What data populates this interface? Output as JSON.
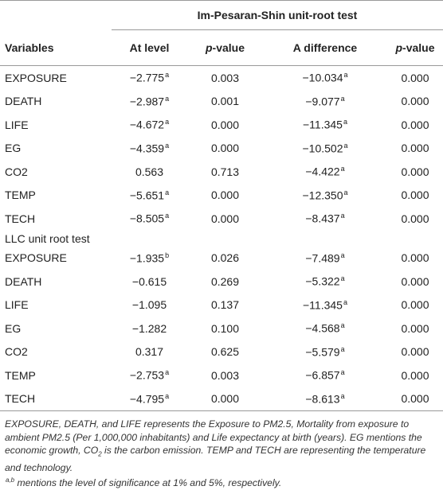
{
  "table": {
    "title": "Im-Pesaran-Shin unit-root test",
    "columns": [
      "Variables",
      "At level",
      {
        "italic": "p",
        "text": "-value"
      },
      "A difference",
      {
        "italic": "p",
        "text": "-value"
      }
    ],
    "panels": [
      {
        "rows": [
          [
            "EXPOSURE",
            {
              "text": "−2.775",
              "sup": "a"
            },
            "0.003",
            {
              "text": "−10.034",
              "sup": "a"
            },
            "0.000"
          ],
          [
            "DEATH",
            {
              "text": "−2.987",
              "sup": "a"
            },
            "0.001",
            {
              "text": "−9.077",
              "sup": "a"
            },
            "0.000"
          ],
          [
            "LIFE",
            {
              "text": "−4.672",
              "sup": "a"
            },
            "0.000",
            {
              "text": "−11.345",
              "sup": "a"
            },
            "0.000"
          ],
          [
            "EG",
            {
              "text": "−4.359",
              "sup": "a"
            },
            "0.000",
            {
              "text": "−10.502",
              "sup": "a"
            },
            "0.000"
          ],
          [
            "CO2",
            "0.563",
            "0.713",
            {
              "text": "−4.422",
              "sup": "a"
            },
            "0.000"
          ],
          [
            "TEMP",
            {
              "text": "−5.651",
              "sup": "a"
            },
            "0.000",
            {
              "text": "−12.350",
              "sup": "a"
            },
            "0.000"
          ],
          [
            "TECH",
            {
              "text": "−8.505",
              "sup": "a"
            },
            "0.000",
            {
              "text": "−8.437",
              "sup": "a"
            },
            "0.000"
          ]
        ]
      },
      {
        "heading": "LLC unit root test",
        "rows": [
          [
            "EXPOSURE",
            {
              "text": "−1.935",
              "sup": "b"
            },
            "0.026",
            {
              "text": "−7.489",
              "sup": "a"
            },
            "0.000"
          ],
          [
            "DEATH",
            "−0.615",
            "0.269",
            {
              "text": "−5.322",
              "sup": "a"
            },
            "0.000"
          ],
          [
            "LIFE",
            "−1.095",
            "0.137",
            {
              "text": "−11.345",
              "sup": "a"
            },
            "0.000"
          ],
          [
            "EG",
            "−1.282",
            "0.100",
            {
              "text": "−4.568",
              "sup": "a"
            },
            "0.000"
          ],
          [
            "CO2",
            "0.317",
            "0.625",
            {
              "text": "−5.579",
              "sup": "a"
            },
            "0.000"
          ],
          [
            "TEMP",
            {
              "text": "−2.753",
              "sup": "a"
            },
            "0.003",
            {
              "text": "−6.857",
              "sup": "a"
            },
            "0.000"
          ],
          [
            "TECH",
            {
              "text": "−4.795",
              "sup": "a"
            },
            "0.000",
            {
              "text": "−8.613",
              "sup": "a"
            },
            "0.000"
          ]
        ]
      }
    ],
    "notes": [
      [
        "EXPOSURE, DEATH, and LIFE represents the Exposure to PM2.5, Mortality from exposure to ambient PM2.5 (Per 1,000,000 inhabitants) and Life expectancy at birth (years). EG mentions the economic growth, CO",
        {
          "sub": "2"
        },
        " is the carbon emission. TEMP and TECH are representing the temperature and technology."
      ],
      [
        {
          "sup": "a,b"
        },
        " mentions the level of significance at 1% and 5%, respectively."
      ]
    ]
  }
}
